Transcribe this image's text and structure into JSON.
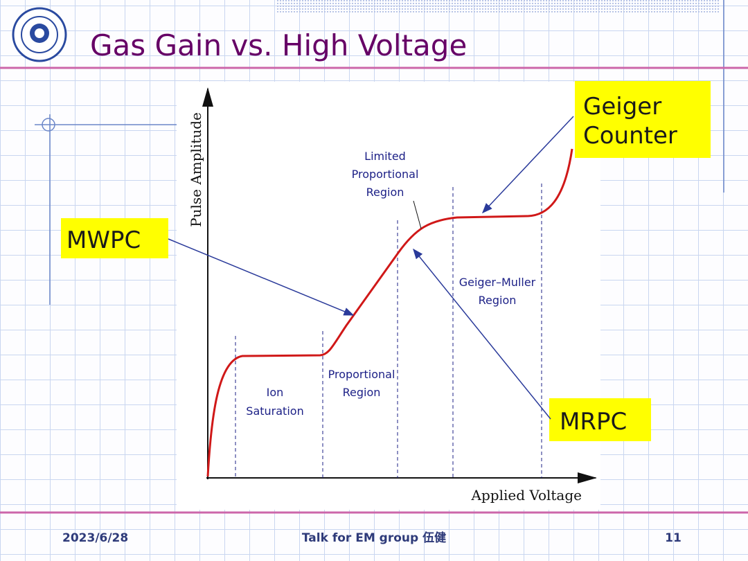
{
  "header": {
    "title": "Gas Gain vs. High Voltage"
  },
  "diagram": {
    "y_axis_label": "Pulse Amplitude",
    "x_axis_label": "Applied Voltage",
    "regions": [
      {
        "lines": [
          "Ion",
          "Saturation"
        ]
      },
      {
        "lines": [
          "Proportional",
          "Region"
        ]
      },
      {
        "lines": [
          "Limited",
          "Proportional",
          "Region"
        ]
      },
      {
        "lines": [
          "Geiger–Muller",
          "Region"
        ]
      }
    ]
  },
  "callouts": [
    {
      "lines": [
        "Geiger",
        "Counter"
      ]
    },
    {
      "lines": [
        "MWPC"
      ]
    },
    {
      "lines": [
        "MRPC"
      ]
    }
  ],
  "footer": {
    "date": "2023/6/28",
    "talk": "Talk for EM group  伍健",
    "page": "11"
  }
}
